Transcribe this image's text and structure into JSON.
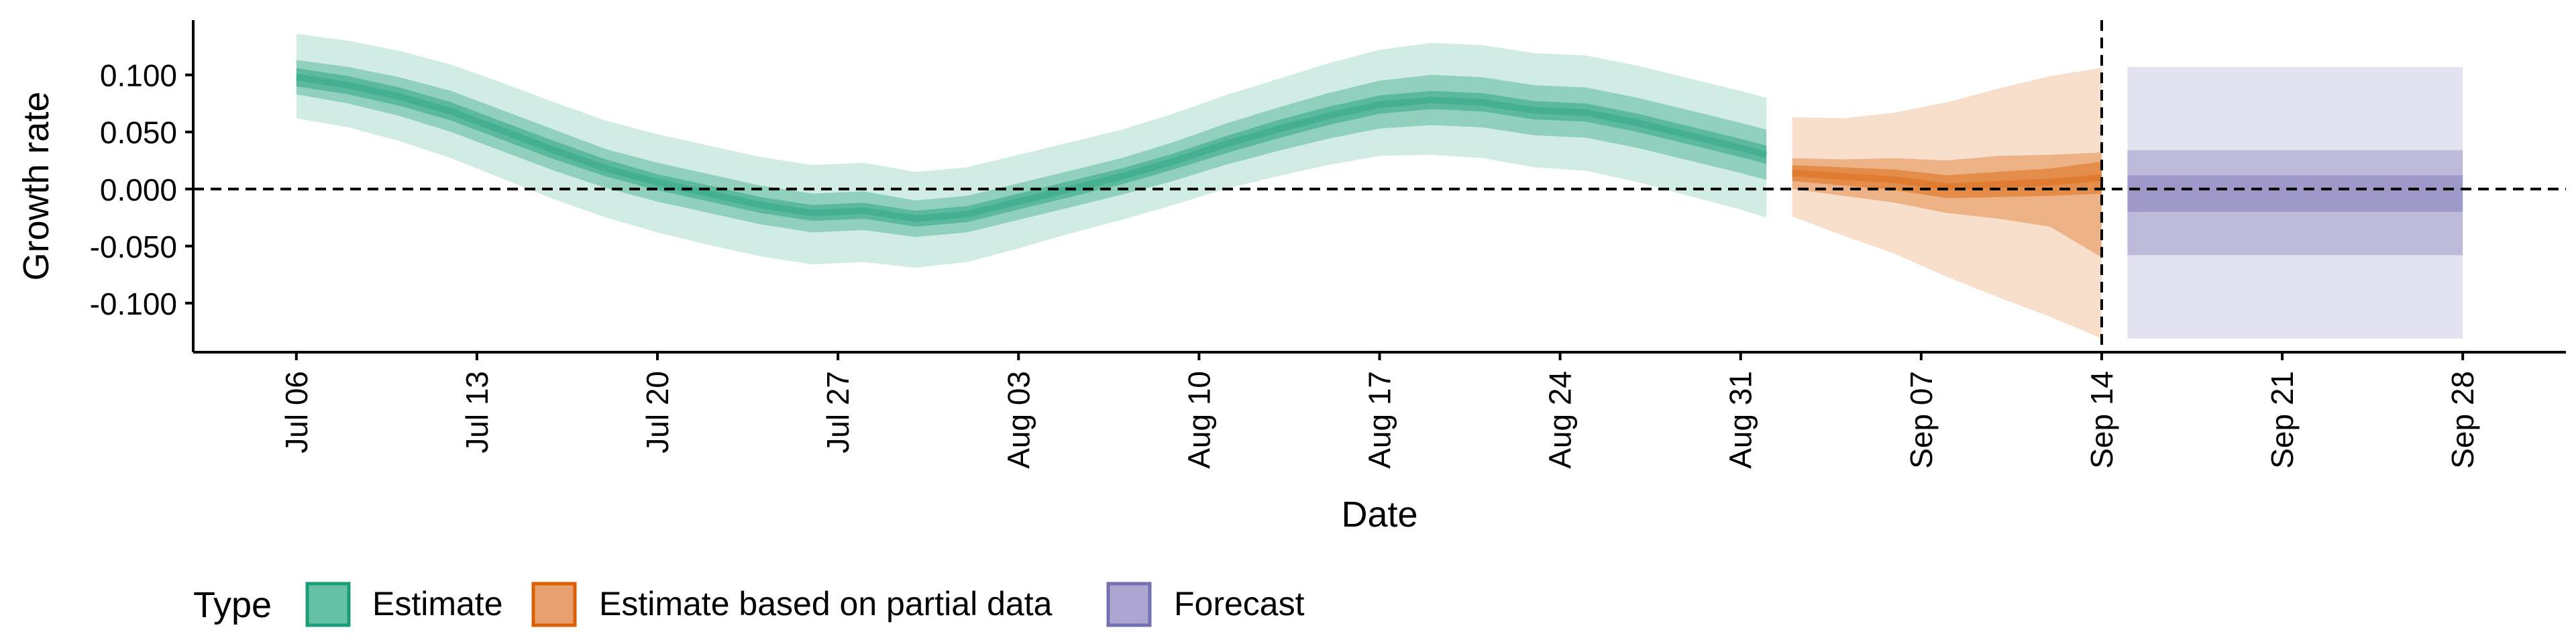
{
  "chart_data": {
    "type": "area",
    "xlabel": "Date",
    "ylabel": "Growth rate",
    "x_tick_labels": [
      "Jul 06",
      "Jul 13",
      "Jul 20",
      "Jul 27",
      "Aug 03",
      "Aug 10",
      "Aug 17",
      "Aug 24",
      "Aug 31",
      "Sep 07",
      "Sep 14",
      "Sep 21",
      "Sep 28"
    ],
    "x_tick_dates": [
      "2020-07-06",
      "2020-07-13",
      "2020-07-20",
      "2020-07-27",
      "2020-08-03",
      "2020-08-10",
      "2020-08-17",
      "2020-08-24",
      "2020-08-31",
      "2020-09-07",
      "2020-09-14",
      "2020-09-21",
      "2020-09-28"
    ],
    "xlim": [
      "2020-07-02",
      "2020-10-02"
    ],
    "y_tick_labels": [
      "0.100",
      "0.050",
      "0.000",
      "-0.050",
      "-0.100"
    ],
    "y_ticks": [
      0.1,
      0.05,
      0,
      -0.05,
      -0.1
    ],
    "ylim": [
      -0.143,
      0.148
    ],
    "reference_lines": {
      "y_zero": 0,
      "vertical_date": "2020-09-14"
    },
    "legend": {
      "title": "Type",
      "position": "bottom-left",
      "items": [
        {
          "label": "Estimate",
          "fill": "#66C2A5",
          "stroke": "#1B9E77"
        },
        {
          "label": "Estimate based on partial data",
          "fill": "#E8A070",
          "stroke": "#D95F02"
        },
        {
          "label": "Forecast",
          "fill": "#ADA6D1",
          "stroke": "#7570B3"
        }
      ]
    },
    "colors": {
      "estimate": "#1B9E77",
      "partial": "#D95F02",
      "forecast": "#7570B3"
    },
    "series": [
      {
        "name": "Estimate",
        "x": [
          "2020-07-06",
          "2020-07-08",
          "2020-07-10",
          "2020-07-12",
          "2020-07-14",
          "2020-07-16",
          "2020-07-18",
          "2020-07-20",
          "2020-07-22",
          "2020-07-24",
          "2020-07-26",
          "2020-07-28",
          "2020-07-30",
          "2020-08-01",
          "2020-08-03",
          "2020-08-05",
          "2020-08-07",
          "2020-08-09",
          "2020-08-11",
          "2020-08-13",
          "2020-08-15",
          "2020-08-17",
          "2020-08-19",
          "2020-08-21",
          "2020-08-23",
          "2020-08-25",
          "2020-08-27",
          "2020-08-29",
          "2020-08-31",
          "2020-09-01"
        ],
        "median": [
          0.098,
          0.091,
          0.081,
          0.068,
          0.051,
          0.034,
          0.018,
          0.006,
          -0.004,
          -0.014,
          -0.021,
          -0.019,
          -0.026,
          -0.022,
          -0.011,
          0.0,
          0.011,
          0.024,
          0.039,
          0.052,
          0.064,
          0.074,
          0.078,
          0.076,
          0.069,
          0.067,
          0.058,
          0.047,
          0.036,
          0.03
        ],
        "lower_20": [
          0.09,
          0.083,
          0.073,
          0.06,
          0.043,
          0.026,
          0.011,
          -0.001,
          -0.011,
          -0.021,
          -0.028,
          -0.026,
          -0.033,
          -0.029,
          -0.018,
          -0.007,
          0.004,
          0.017,
          0.031,
          0.044,
          0.056,
          0.066,
          0.07,
          0.068,
          0.061,
          0.059,
          0.05,
          0.039,
          0.028,
          0.022
        ],
        "upper_20": [
          0.106,
          0.099,
          0.089,
          0.076,
          0.059,
          0.042,
          0.026,
          0.013,
          0.003,
          -0.007,
          -0.014,
          -0.012,
          -0.019,
          -0.015,
          -0.004,
          0.007,
          0.018,
          0.031,
          0.046,
          0.06,
          0.072,
          0.082,
          0.086,
          0.084,
          0.077,
          0.075,
          0.066,
          0.055,
          0.044,
          0.038
        ],
        "lower_50": [
          0.083,
          0.075,
          0.064,
          0.05,
          0.033,
          0.016,
          0.001,
          -0.011,
          -0.021,
          -0.031,
          -0.038,
          -0.036,
          -0.042,
          -0.038,
          -0.027,
          -0.016,
          -0.005,
          0.007,
          0.021,
          0.033,
          0.044,
          0.053,
          0.056,
          0.054,
          0.047,
          0.045,
          0.036,
          0.025,
          0.014,
          0.008
        ],
        "upper_50": [
          0.113,
          0.107,
          0.098,
          0.086,
          0.069,
          0.052,
          0.035,
          0.023,
          0.013,
          0.003,
          -0.004,
          -0.002,
          -0.01,
          -0.006,
          0.005,
          0.016,
          0.027,
          0.041,
          0.057,
          0.071,
          0.084,
          0.095,
          0.1,
          0.098,
          0.091,
          0.089,
          0.08,
          0.069,
          0.058,
          0.052
        ],
        "lower_90": [
          0.062,
          0.054,
          0.042,
          0.027,
          0.009,
          -0.009,
          -0.025,
          -0.038,
          -0.049,
          -0.059,
          -0.066,
          -0.064,
          -0.069,
          -0.064,
          -0.052,
          -0.039,
          -0.027,
          -0.014,
          0.0,
          0.011,
          0.021,
          0.029,
          0.03,
          0.027,
          0.019,
          0.016,
          0.006,
          -0.006,
          -0.018,
          -0.025
        ],
        "upper_90": [
          0.136,
          0.13,
          0.121,
          0.109,
          0.093,
          0.076,
          0.06,
          0.048,
          0.038,
          0.028,
          0.021,
          0.023,
          0.015,
          0.019,
          0.03,
          0.041,
          0.052,
          0.066,
          0.082,
          0.096,
          0.11,
          0.122,
          0.128,
          0.126,
          0.119,
          0.117,
          0.108,
          0.097,
          0.086,
          0.08
        ]
      },
      {
        "name": "Estimate based on partial data",
        "x": [
          "2020-09-02",
          "2020-09-04",
          "2020-09-06",
          "2020-09-08",
          "2020-09-10",
          "2020-09-12",
          "2020-09-14"
        ],
        "median": [
          0.014,
          0.011,
          0.008,
          0.002,
          0.004,
          0.006,
          0.01
        ],
        "lower_20": [
          0.007,
          0.003,
          -0.001,
          -0.008,
          -0.007,
          -0.006,
          -0.004
        ],
        "upper_20": [
          0.021,
          0.019,
          0.017,
          0.012,
          0.015,
          0.018,
          0.024
        ],
        "lower_50": [
          0.0,
          -0.006,
          -0.012,
          -0.021,
          -0.026,
          -0.033,
          -0.06
        ],
        "upper_50": [
          0.027,
          0.026,
          0.027,
          0.025,
          0.029,
          0.03,
          0.032
        ],
        "lower_90": [
          -0.024,
          -0.041,
          -0.057,
          -0.077,
          -0.095,
          -0.112,
          -0.131
        ],
        "upper_90": [
          0.063,
          0.062,
          0.067,
          0.076,
          0.088,
          0.099,
          0.106
        ]
      },
      {
        "name": "Forecast",
        "x": [
          "2020-09-15",
          "2020-09-28"
        ],
        "median": [
          -0.004,
          -0.004
        ],
        "lower_20": [
          -0.02,
          -0.02
        ],
        "upper_20": [
          0.012,
          0.012
        ],
        "lower_50": [
          -0.058,
          -0.058
        ],
        "upper_50": [
          0.034,
          0.034
        ],
        "lower_90": [
          -0.131,
          -0.131
        ],
        "upper_90": [
          0.107,
          0.107
        ]
      }
    ]
  }
}
